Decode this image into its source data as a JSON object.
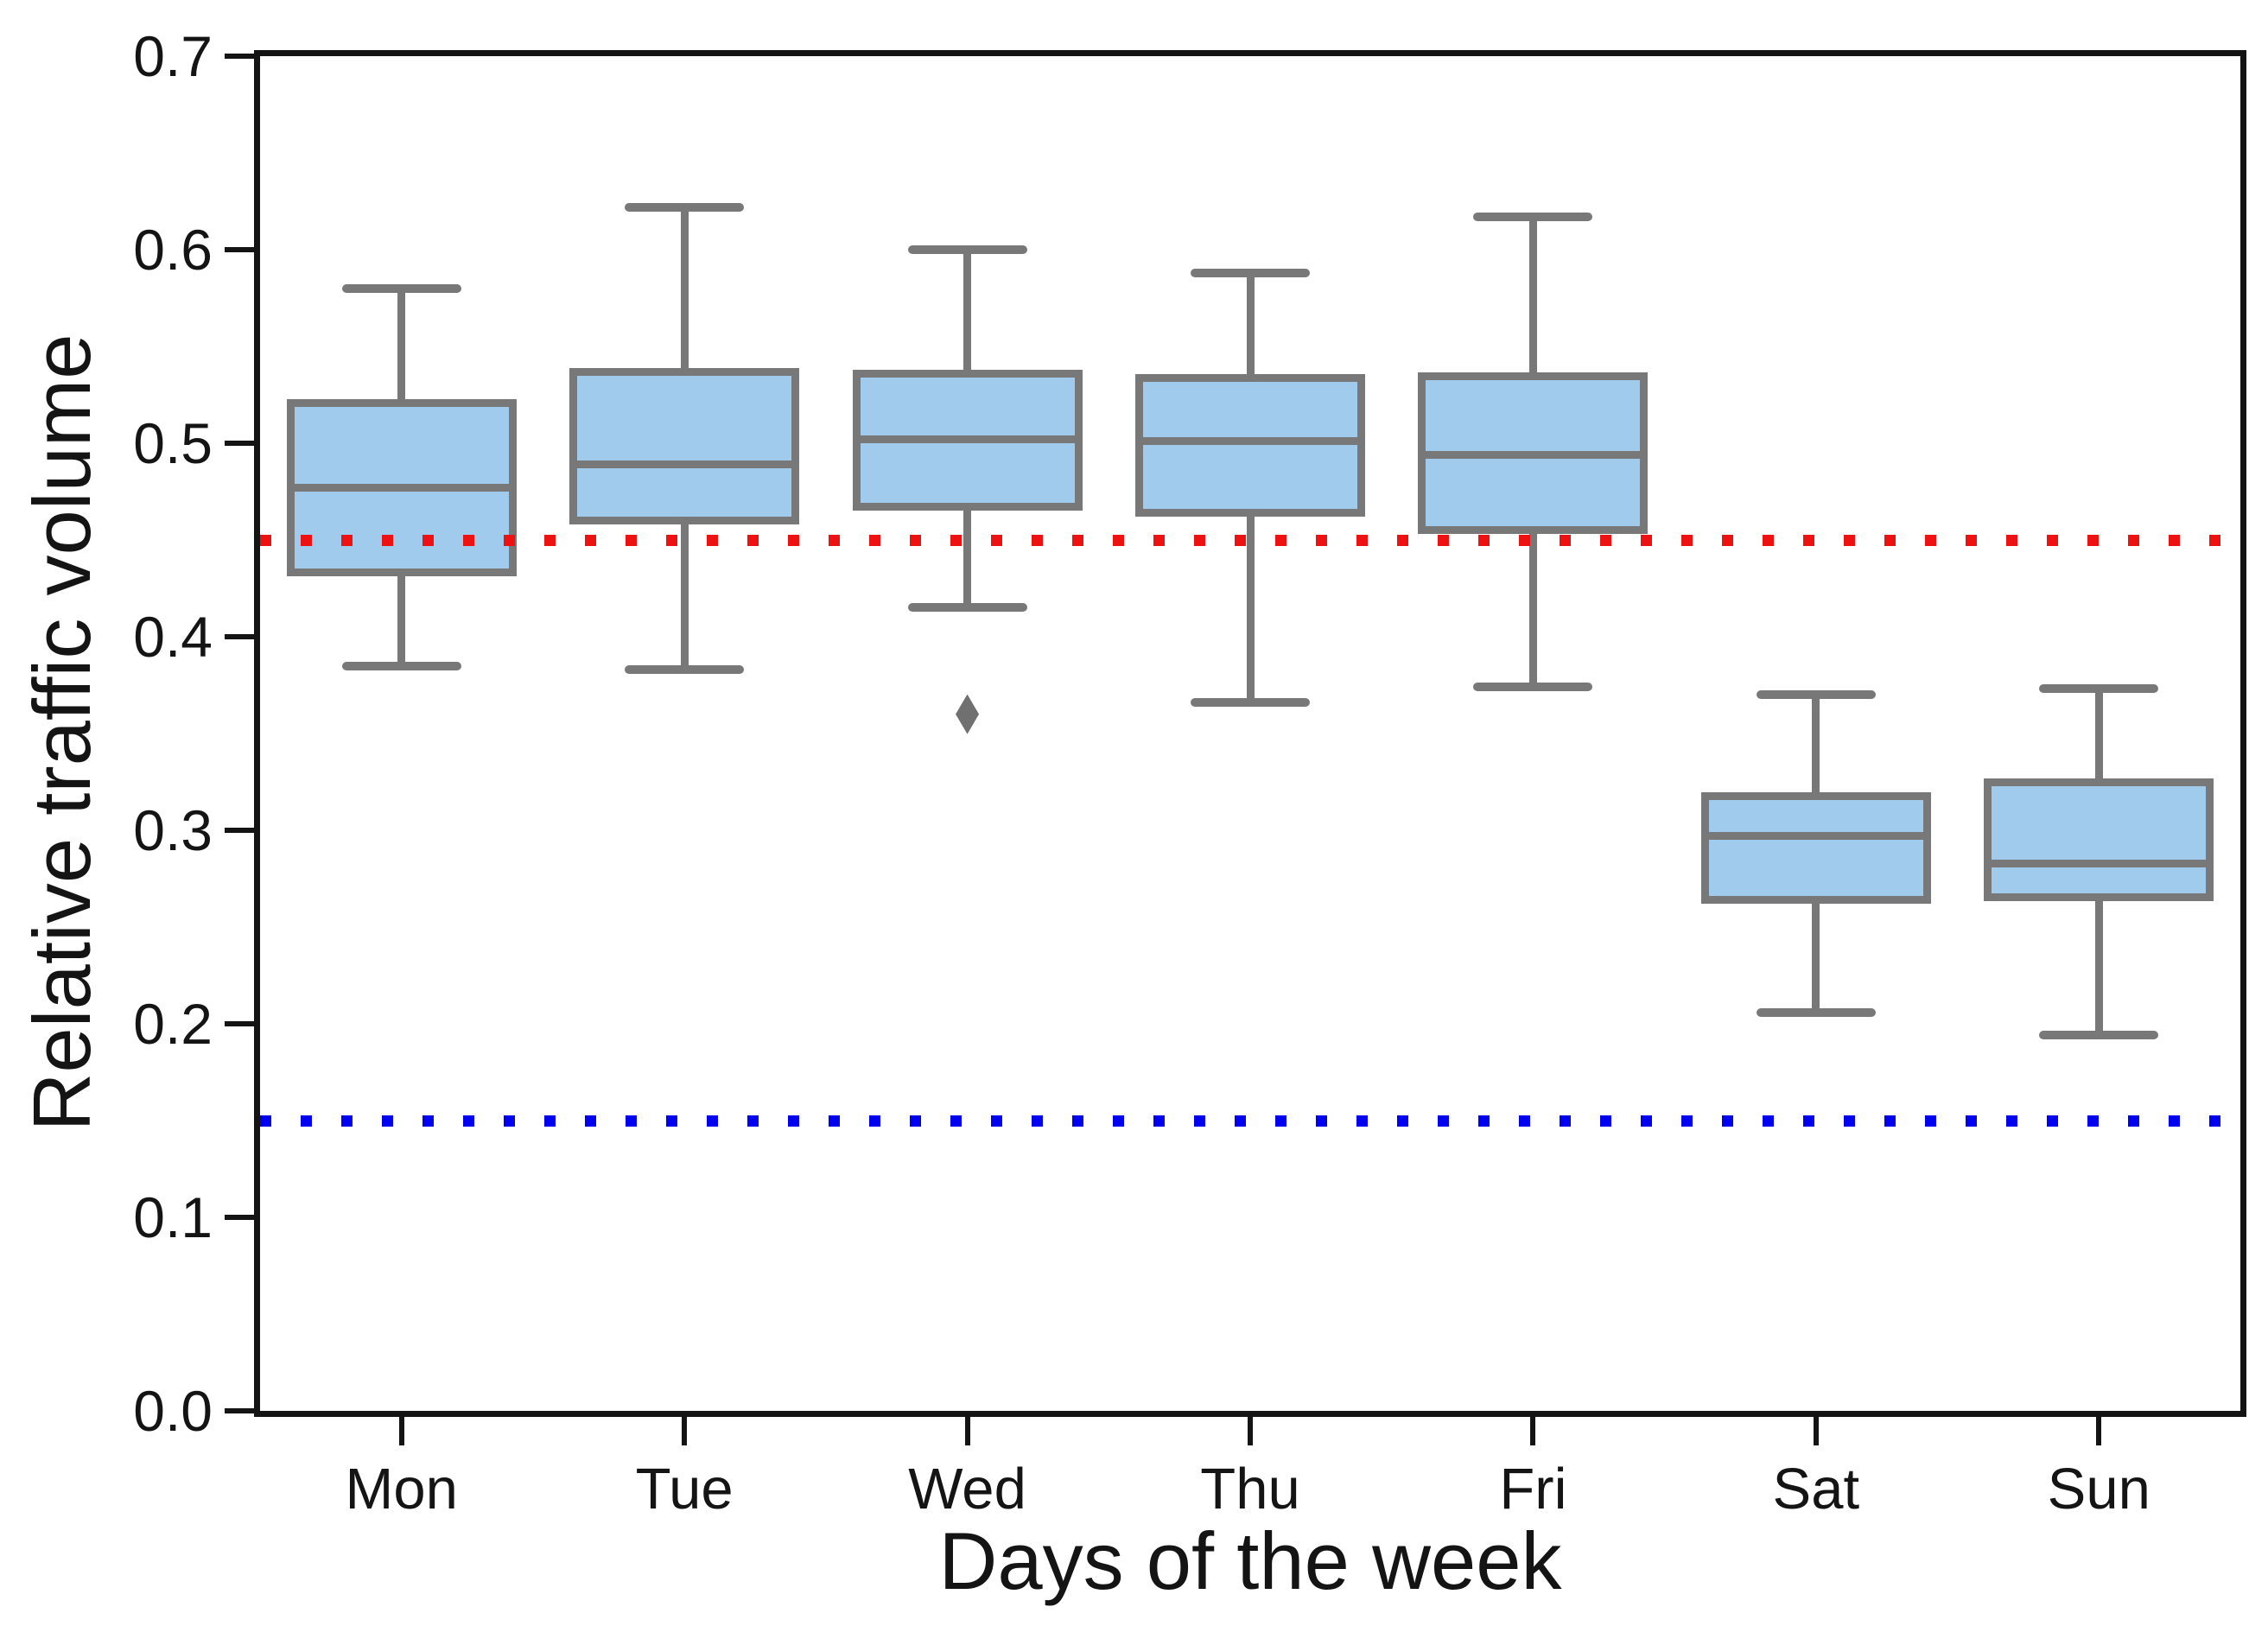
{
  "figure": {
    "xlabel": "Days of the week",
    "ylabel": "Relative traffic volume",
    "background": "#ffffff",
    "text_color": "#141414"
  },
  "chart_data": {
    "type": "boxplot",
    "title": "",
    "xlabel": "Days of the week",
    "ylabel": "Relative traffic volume",
    "categories": [
      "Mon",
      "Tue",
      "Wed",
      "Thu",
      "Fri",
      "Sat",
      "Sun"
    ],
    "series": [
      {
        "name": "Mon",
        "whisker_low": 0.385,
        "q1": 0.433,
        "median": 0.477,
        "q3": 0.521,
        "whisker_high": 0.58,
        "outliers": []
      },
      {
        "name": "Tue",
        "whisker_low": 0.383,
        "q1": 0.46,
        "median": 0.489,
        "q3": 0.537,
        "whisker_high": 0.622,
        "outliers": []
      },
      {
        "name": "Wed",
        "whisker_low": 0.415,
        "q1": 0.467,
        "median": 0.502,
        "q3": 0.536,
        "whisker_high": 0.6,
        "outliers": [
          0.36
        ]
      },
      {
        "name": "Thu",
        "whisker_low": 0.366,
        "q1": 0.464,
        "median": 0.501,
        "q3": 0.534,
        "whisker_high": 0.588,
        "outliers": []
      },
      {
        "name": "Fri",
        "whisker_low": 0.374,
        "q1": 0.455,
        "median": 0.494,
        "q3": 0.535,
        "whisker_high": 0.617,
        "outliers": []
      },
      {
        "name": "Sat",
        "whisker_low": 0.206,
        "q1": 0.264,
        "median": 0.297,
        "q3": 0.318,
        "whisker_high": 0.37,
        "outliers": []
      },
      {
        "name": "Sun",
        "whisker_low": 0.194,
        "q1": 0.265,
        "median": 0.283,
        "q3": 0.325,
        "whisker_high": 0.373,
        "outliers": []
      }
    ],
    "ylim": [
      0.0,
      0.7
    ],
    "y_ticks": [
      0.0,
      0.1,
      0.2,
      0.3,
      0.4,
      0.5,
      0.6,
      0.7
    ],
    "y_tick_labels": [
      "0.0",
      "0.1",
      "0.2",
      "0.3",
      "0.4",
      "0.5",
      "0.6",
      "0.7"
    ],
    "reference_lines": [
      {
        "value": 0.45,
        "color": "#ee1111",
        "style": "dotted",
        "name": "reference-line-red"
      },
      {
        "value": 0.15,
        "color": "#0000ee",
        "style": "dotted",
        "name": "reference-line-blue"
      }
    ],
    "grid": false,
    "legend": "none",
    "box_fill": "#a1cbec",
    "box_edge": "#787878",
    "outlier_color": "#707070"
  }
}
